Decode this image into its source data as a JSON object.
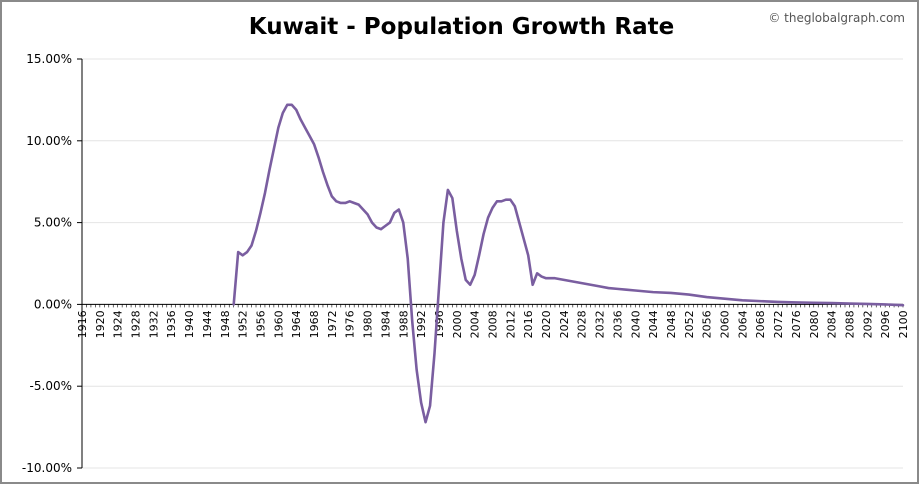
{
  "credit": "© theglobalgraph.com",
  "chart_data": {
    "type": "line",
    "title": "Kuwait - Population Growth Rate",
    "xlabel": "",
    "ylabel": "",
    "xlim": [
      1916,
      2100
    ],
    "ylim": [
      -10,
      15
    ],
    "y_ticks": [
      -10,
      -5,
      0,
      5,
      10,
      15
    ],
    "y_tick_labels": [
      "-10.00%",
      "-5.00%",
      "0.00%",
      "5.00%",
      "10.00%",
      "15.00%"
    ],
    "x_tick_labels": [
      "1916",
      "1920",
      "1924",
      "1928",
      "1932",
      "1936",
      "1940",
      "1944",
      "1948",
      "1952",
      "1956",
      "1960",
      "1964",
      "1968",
      "1972",
      "1976",
      "1980",
      "1984",
      "1988",
      "1992",
      "1996",
      "2000",
      "2004",
      "2008",
      "2012",
      "2016",
      "2020",
      "2024",
      "2028",
      "2032",
      "2036",
      "2040",
      "2044",
      "2048",
      "2052",
      "2056",
      "2060",
      "2064",
      "2068",
      "2072",
      "2076",
      "2080",
      "2084",
      "2088",
      "2092",
      "2096",
      "2100"
    ],
    "grid": true,
    "line_color": "#7a5ea0",
    "series": [
      {
        "x": [
          1950,
          1951,
          1952,
          1953,
          1954,
          1955,
          1956,
          1957,
          1958,
          1959,
          1960,
          1961,
          1962,
          1963,
          1964,
          1965,
          1966,
          1967,
          1968,
          1969,
          1970,
          1971,
          1972,
          1973,
          1974,
          1975,
          1976,
          1977,
          1978,
          1979,
          1980,
          1981,
          1982,
          1983,
          1984,
          1985,
          1986,
          1987,
          1988,
          1989,
          1990,
          1991,
          1992,
          1993,
          1994,
          1995,
          1996,
          1997,
          1998,
          1999,
          2000,
          2001,
          2002,
          2003,
          2004,
          2005,
          2006,
          2007,
          2008,
          2009,
          2010,
          2011,
          2012,
          2013,
          2014,
          2015,
          2016,
          2017,
          2018,
          2019,
          2020,
          2022,
          2024,
          2026,
          2028,
          2030,
          2032,
          2034,
          2036,
          2038,
          2040,
          2044,
          2048,
          2052,
          2056,
          2060,
          2064,
          2068,
          2072,
          2076,
          2080,
          2084,
          2088,
          2092,
          2096,
          2100
        ],
        "values": [
          0.0,
          3.2,
          3.0,
          3.2,
          3.6,
          4.5,
          5.6,
          6.8,
          8.2,
          9.5,
          10.8,
          11.7,
          12.2,
          12.2,
          11.9,
          11.3,
          10.8,
          10.3,
          9.8,
          9.0,
          8.1,
          7.3,
          6.6,
          6.3,
          6.2,
          6.2,
          6.3,
          6.2,
          6.1,
          5.8,
          5.5,
          5.0,
          4.7,
          4.6,
          4.8,
          5.0,
          5.6,
          5.8,
          5.0,
          2.8,
          -1.0,
          -4.0,
          -6.0,
          -7.2,
          -6.2,
          -3.0,
          1.0,
          5.0,
          7.0,
          6.5,
          4.5,
          2.8,
          1.5,
          1.2,
          1.8,
          3.0,
          4.3,
          5.3,
          5.9,
          6.3,
          6.3,
          6.4,
          6.4,
          6.0,
          5.0,
          4.0,
          3.0,
          1.2,
          1.9,
          1.7,
          1.6,
          1.6,
          1.5,
          1.4,
          1.3,
          1.2,
          1.1,
          1.0,
          0.95,
          0.9,
          0.85,
          0.75,
          0.7,
          0.6,
          0.45,
          0.35,
          0.25,
          0.2,
          0.15,
          0.12,
          0.1,
          0.08,
          0.05,
          0.03,
          0.0,
          -0.05
        ]
      }
    ]
  }
}
